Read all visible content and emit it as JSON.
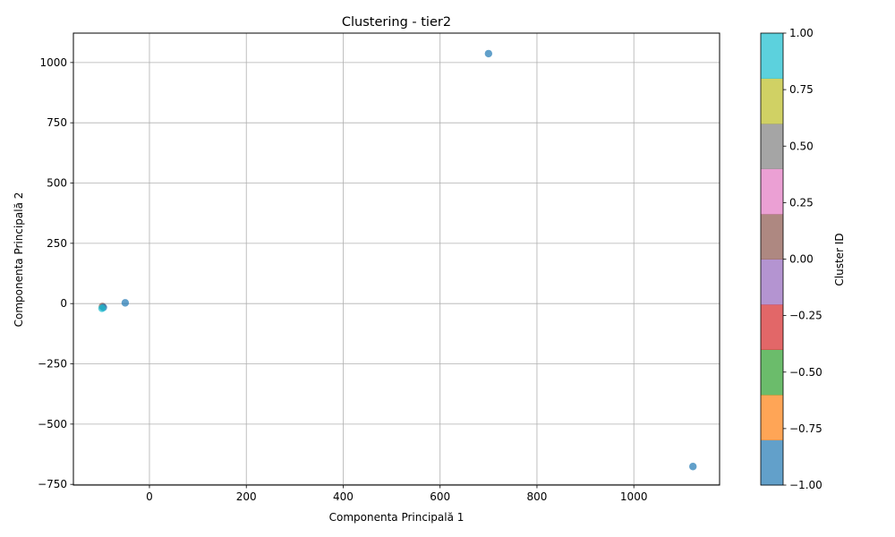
{
  "chart_data": {
    "type": "scatter",
    "title": "Clustering - tier2",
    "xlabel": "Componenta Principală 1",
    "ylabel": "Componenta Principală 2",
    "xlim": [
      -157,
      1177
    ],
    "ylim": [
      -753,
      1122
    ],
    "xticks": [
      0,
      200,
      400,
      600,
      800,
      1000
    ],
    "xtick_labels": [
      "0",
      "200",
      "400",
      "600",
      "800",
      "1000"
    ],
    "yticks": [
      -750,
      -500,
      -250,
      0,
      250,
      500,
      750,
      1000
    ],
    "ytick_labels": [
      "−750",
      "−500",
      "−250",
      "0",
      "250",
      "500",
      "750",
      "1000"
    ],
    "grid": true,
    "points": [
      {
        "x": 700,
        "y": 1037,
        "cluster": -1
      },
      {
        "x": 1122,
        "y": -676,
        "cluster": -1
      },
      {
        "x": -50,
        "y": 3,
        "cluster": -1
      },
      {
        "x": -97,
        "y": -12,
        "cluster": 0
      },
      {
        "x": -95,
        "y": -16,
        "cluster": -1
      },
      {
        "x": -98,
        "y": -20,
        "cluster": 1
      }
    ],
    "colorbar": {
      "label": "Cluster ID",
      "range": [
        -1,
        1
      ],
      "ticks": [
        -1.0,
        -0.75,
        -0.5,
        -0.25,
        0.0,
        0.25,
        0.5,
        0.75,
        1.0
      ],
      "tick_labels": [
        "−1.00",
        "−0.75",
        "−0.50",
        "−0.25",
        "0.00",
        "0.25",
        "0.50",
        "0.75",
        "1.00"
      ],
      "colors": [
        "#1f77b4",
        "#ff7f0e",
        "#2ca02c",
        "#d62728",
        "#9467bd",
        "#8c564b",
        "#e377c2",
        "#7f7f7f",
        "#bcbd22",
        "#17becf"
      ]
    },
    "point_alpha": 0.7
  }
}
